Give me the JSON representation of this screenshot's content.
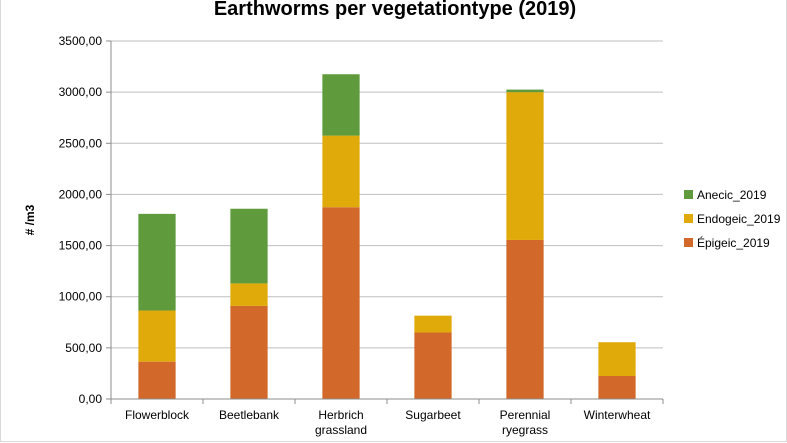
{
  "chart_data": {
    "type": "bar",
    "stacked": true,
    "title": "Earthworms per vegetationtype (2019)",
    "xlabel": "",
    "ylabel": "# /m3",
    "ylim": [
      0,
      3500
    ],
    "ytick_step": 500,
    "ytick_labels": [
      "0,00",
      "500,00",
      "1000,00",
      "1500,00",
      "2000,00",
      "2500,00",
      "3000,00",
      "3500,00"
    ],
    "grid": true,
    "legend_position": "right",
    "categories": [
      [
        "Flowerblock"
      ],
      [
        "Beetlebank"
      ],
      [
        "Herbrich",
        "grassland"
      ],
      [
        "Sugarbeet"
      ],
      [
        "Perennial",
        "ryegrass"
      ],
      [
        "Winterwheat"
      ]
    ],
    "series": [
      {
        "name": "Épigeic_2019",
        "color": "#d2692b",
        "values": [
          365,
          910,
          1875,
          650,
          1555,
          225
        ]
      },
      {
        "name": "Endogeic_2019",
        "color": "#e0aa0a",
        "values": [
          500,
          220,
          700,
          165,
          1445,
          330
        ]
      },
      {
        "name": "Anecic_2019",
        "color": "#5f9a3d",
        "values": [
          945,
          730,
          600,
          0,
          25,
          0
        ]
      }
    ],
    "legend_order": [
      "Anecic_2019",
      "Endogeic_2019",
      "Épigeic_2019"
    ]
  }
}
